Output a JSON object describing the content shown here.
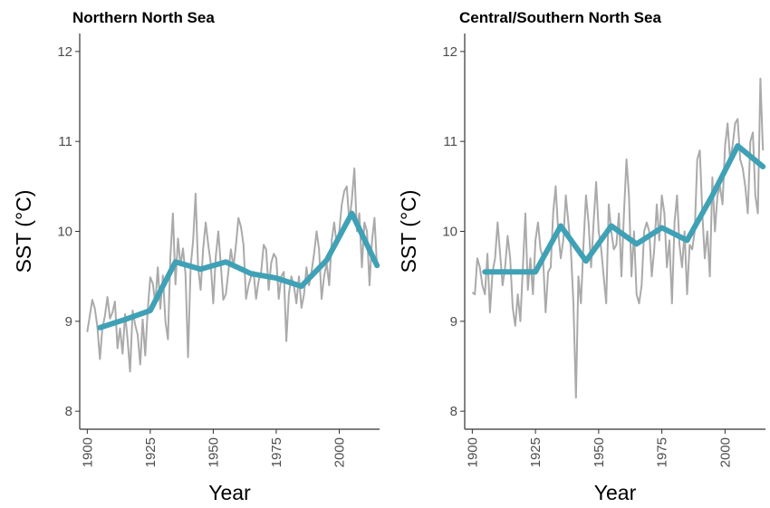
{
  "chart_data": [
    {
      "type": "line",
      "title": "Northern North Sea",
      "xlabel": "Year",
      "ylabel": "SST (°C)",
      "xlim": [
        1897,
        2016
      ],
      "ylim": [
        7.8,
        12.2
      ],
      "xticks": [
        1900,
        1925,
        1950,
        1975,
        2000
      ],
      "yticks": [
        8,
        9,
        10,
        11,
        12
      ],
      "grid": false,
      "colors": {
        "annual": "#aaaaaa",
        "smooth": "#3fa1b6"
      },
      "series": [
        {
          "style": "annual",
          "x": [
            1900,
            1901,
            1902,
            1903,
            1904,
            1905,
            1906,
            1907,
            1908,
            1909,
            1910,
            1911,
            1912,
            1913,
            1914,
            1915,
            1916,
            1917,
            1918,
            1919,
            1920,
            1921,
            1922,
            1923,
            1924,
            1925,
            1926,
            1927,
            1928,
            1929,
            1930,
            1931,
            1932,
            1933,
            1934,
            1935,
            1936,
            1937,
            1938,
            1939,
            1940,
            1941,
            1942,
            1943,
            1944,
            1945,
            1946,
            1947,
            1948,
            1949,
            1950,
            1951,
            1952,
            1953,
            1954,
            1955,
            1956,
            1957,
            1958,
            1959,
            1960,
            1961,
            1962,
            1963,
            1964,
            1965,
            1966,
            1967,
            1968,
            1969,
            1970,
            1971,
            1972,
            1973,
            1974,
            1975,
            1976,
            1977,
            1978,
            1979,
            1980,
            1981,
            1982,
            1983,
            1984,
            1985,
            1986,
            1987,
            1988,
            1989,
            1990,
            1991,
            1992,
            1993,
            1994,
            1995,
            1996,
            1997,
            1998,
            1999,
            2000,
            2001,
            2002,
            2003,
            2004,
            2005,
            2006,
            2007,
            2008,
            2009,
            2010,
            2011,
            2012,
            2013,
            2014,
            2015
          ],
          "y": [
            8.88,
            9.06,
            9.24,
            9.14,
            8.94,
            8.58,
            8.92,
            9.06,
            9.27,
            9.03,
            9.1,
            9.22,
            8.7,
            8.92,
            8.64,
            9.08,
            8.8,
            8.44,
            9.12,
            8.96,
            8.85,
            8.52,
            9.02,
            8.62,
            9.13,
            9.49,
            9.42,
            9.2,
            9.6,
            9.14,
            9.51,
            9.0,
            8.8,
            9.72,
            10.2,
            9.41,
            9.92,
            9.62,
            9.81,
            9.52,
            8.6,
            9.6,
            9.9,
            10.42,
            9.6,
            9.35,
            9.81,
            10.1,
            9.85,
            9.65,
            9.2,
            9.72,
            10.0,
            9.62,
            9.24,
            9.3,
            9.55,
            9.8,
            9.6,
            9.85,
            10.15,
            10.05,
            9.85,
            9.25,
            9.4,
            9.5,
            9.55,
            9.25,
            9.45,
            9.55,
            9.85,
            9.8,
            9.35,
            9.65,
            9.75,
            9.7,
            9.25,
            9.5,
            9.55,
            8.78,
            9.3,
            9.5,
            9.4,
            9.2,
            9.5,
            9.15,
            9.3,
            9.6,
            9.4,
            9.55,
            9.75,
            10.0,
            9.8,
            9.25,
            9.5,
            9.65,
            9.4,
            9.9,
            10.1,
            9.85,
            10.0,
            10.3,
            10.45,
            10.5,
            10.1,
            10.35,
            10.7,
            10.0,
            10.2,
            9.6,
            10.1,
            10.0,
            9.4,
            9.9,
            10.15,
            9.6
          ]
        },
        {
          "style": "smooth",
          "x": [
            1905,
            1915,
            1925,
            1935,
            1945,
            1955,
            1965,
            1975,
            1985,
            1995,
            2005,
            2015
          ],
          "y": [
            8.93,
            9.02,
            9.12,
            9.66,
            9.58,
            9.66,
            9.53,
            9.48,
            9.39,
            9.68,
            10.2,
            9.62
          ]
        }
      ]
    },
    {
      "type": "line",
      "title": "Central/Southern North Sea",
      "xlabel": "Year",
      "ylabel": "SST (°C)",
      "xlim": [
        1897,
        2016
      ],
      "ylim": [
        7.8,
        12.2
      ],
      "xticks": [
        1900,
        1925,
        1950,
        1975,
        2000
      ],
      "yticks": [
        8,
        9,
        10,
        11,
        12
      ],
      "grid": false,
      "colors": {
        "annual": "#aaaaaa",
        "smooth": "#3fa1b6"
      },
      "series": [
        {
          "style": "annual",
          "x": [
            1900,
            1901,
            1902,
            1903,
            1904,
            1905,
            1906,
            1907,
            1908,
            1909,
            1910,
            1911,
            1912,
            1913,
            1914,
            1915,
            1916,
            1917,
            1918,
            1919,
            1920,
            1921,
            1922,
            1923,
            1924,
            1925,
            1926,
            1927,
            1928,
            1929,
            1930,
            1931,
            1932,
            1933,
            1934,
            1935,
            1936,
            1937,
            1938,
            1939,
            1940,
            1941,
            1942,
            1943,
            1944,
            1945,
            1946,
            1947,
            1948,
            1949,
            1950,
            1951,
            1952,
            1953,
            1954,
            1955,
            1956,
            1957,
            1958,
            1959,
            1960,
            1961,
            1962,
            1963,
            1964,
            1965,
            1966,
            1967,
            1968,
            1969,
            1970,
            1971,
            1972,
            1973,
            1974,
            1975,
            1976,
            1977,
            1978,
            1979,
            1980,
            1981,
            1982,
            1983,
            1984,
            1985,
            1986,
            1987,
            1988,
            1989,
            1990,
            1991,
            1992,
            1993,
            1994,
            1995,
            1996,
            1997,
            1998,
            1999,
            2000,
            2001,
            2002,
            2003,
            2004,
            2005,
            2006,
            2007,
            2008,
            2009,
            2010,
            2011,
            2012,
            2013,
            2014,
            2015
          ],
          "y": [
            9.32,
            9.3,
            9.7,
            9.6,
            9.4,
            9.3,
            9.75,
            9.1,
            9.55,
            9.7,
            10.1,
            9.75,
            9.4,
            9.6,
            9.95,
            9.7,
            9.15,
            8.95,
            9.3,
            9.0,
            9.6,
            10.2,
            9.35,
            9.7,
            9.3,
            9.9,
            10.1,
            9.8,
            9.7,
            9.1,
            9.55,
            9.6,
            10.2,
            10.5,
            10.0,
            9.7,
            9.9,
            10.4,
            10.1,
            9.8,
            9.2,
            8.15,
            9.5,
            9.2,
            9.85,
            10.4,
            10.1,
            9.6,
            10.1,
            10.55,
            10.0,
            9.8,
            9.5,
            9.2,
            10.3,
            10.0,
            9.8,
            9.85,
            10.2,
            9.5,
            10.2,
            10.8,
            10.4,
            9.5,
            10.0,
            9.3,
            9.2,
            9.4,
            10.0,
            10.1,
            10.0,
            9.5,
            9.8,
            10.3,
            9.9,
            10.4,
            10.2,
            9.6,
            9.9,
            9.2,
            10.1,
            10.4,
            9.85,
            9.6,
            10.0,
            9.3,
            9.85,
            9.8,
            10.0,
            10.8,
            10.9,
            10.2,
            9.7,
            10.0,
            9.5,
            10.6,
            10.0,
            10.4,
            10.5,
            10.3,
            10.95,
            11.2,
            10.8,
            10.95,
            11.2,
            11.25,
            10.8,
            10.7,
            10.5,
            10.2,
            11.0,
            11.1,
            10.4,
            10.2,
            11.7,
            10.9
          ]
        },
        {
          "style": "smooth",
          "x": [
            1905,
            1915,
            1925,
            1935,
            1945,
            1955,
            1965,
            1975,
            1985,
            1995,
            2005,
            2015
          ],
          "y": [
            9.55,
            9.55,
            9.55,
            10.06,
            9.67,
            10.06,
            9.86,
            10.04,
            9.9,
            10.4,
            10.95,
            10.72
          ]
        }
      ]
    }
  ]
}
